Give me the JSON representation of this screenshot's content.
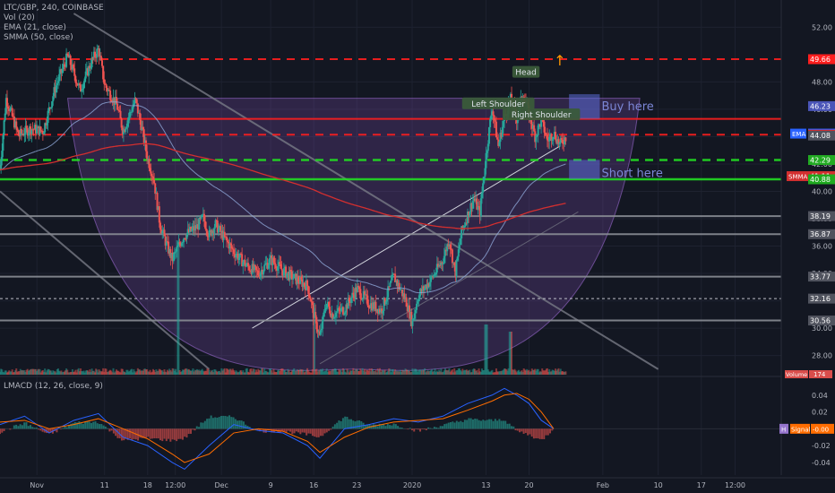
{
  "header": {
    "symbol_line": "LTC/GBP, 240, COINBASE",
    "indicators": [
      "Vol (20)",
      "EMA (21, close)",
      "SMMA (50, close)"
    ]
  },
  "macd_label": "LMACD (12, 26, close, 9)",
  "colors": {
    "background": "#131722",
    "up": "#26a69a",
    "down": "#ef5350",
    "ema": "#8fa8d8",
    "smma": "#d32f2f",
    "cup_fill": "#7b4aa8",
    "resistance": "#ff1e1e",
    "support": "#22dd22",
    "grey_line": "#8a8d95",
    "macd": "#2962ff",
    "signal": "#ff6d00"
  },
  "chart_data": [
    {
      "type": "candlestick",
      "title": "LTC/GBP, 240, COINBASE",
      "y_axis": {
        "ticks": [
          52.0,
          48.0,
          46.0,
          44.0,
          42.0,
          40.0,
          38.0,
          36.0,
          34.0,
          32.0,
          30.0,
          28.0
        ],
        "range": [
          26.6,
          53.2
        ]
      },
      "x_axis": {
        "ticks": [
          {
            "label": "Nov",
            "t": 6
          },
          {
            "label": "11",
            "t": 17
          },
          {
            "label": "18",
            "t": 24
          },
          {
            "label": "12:00",
            "t": 28.5
          },
          {
            "label": "Dec",
            "t": 36
          },
          {
            "label": "9",
            "t": 44
          },
          {
            "label": "16",
            "t": 51
          },
          {
            "label": "23",
            "t": 58
          },
          {
            "label": "2020",
            "t": 67
          },
          {
            "label": "13",
            "t": 79
          },
          {
            "label": "20",
            "t": 86
          },
          {
            "label": "Feb",
            "t": 98
          },
          {
            "label": "10",
            "t": 107
          },
          {
            "label": "17",
            "t": 114
          },
          {
            "label": "12:00",
            "t": 119.5
          }
        ],
        "range": [
          0,
          127
        ]
      },
      "price_path": [
        [
          0,
          41.6
        ],
        [
          1,
          46.8
        ],
        [
          3,
          44.1
        ],
        [
          5,
          44.6
        ],
        [
          7,
          44.4
        ],
        [
          9,
          47.6
        ],
        [
          11,
          49.9
        ],
        [
          13,
          47.4
        ],
        [
          15,
          49.6
        ],
        [
          16,
          50.4
        ],
        [
          17,
          47.8
        ],
        [
          19,
          46.3
        ],
        [
          20,
          44.4
        ],
        [
          22,
          46.7
        ],
        [
          23,
          44.7
        ],
        [
          24,
          42.4
        ],
        [
          25,
          40.9
        ],
        [
          26,
          37.6
        ],
        [
          27,
          36.2
        ],
        [
          28,
          35.0
        ],
        [
          29,
          36.0
        ],
        [
          30,
          36.8
        ],
        [
          32,
          37.4
        ],
        [
          33,
          38.1
        ],
        [
          34,
          36.8
        ],
        [
          35,
          37.6
        ],
        [
          36,
          36.9
        ],
        [
          38,
          35.6
        ],
        [
          40,
          34.6
        ],
        [
          42,
          34.0
        ],
        [
          44,
          35.0
        ],
        [
          46,
          34.2
        ],
        [
          48,
          33.6
        ],
        [
          50,
          33.1
        ],
        [
          51,
          31.0
        ],
        [
          52,
          29.3
        ],
        [
          53,
          31.9
        ],
        [
          54,
          31.0
        ],
        [
          56,
          31.4
        ],
        [
          58,
          32.9
        ],
        [
          60,
          31.8
        ],
        [
          62,
          31.3
        ],
        [
          64,
          33.8
        ],
        [
          66,
          32.0
        ],
        [
          67,
          30.4
        ],
        [
          68,
          32.4
        ],
        [
          70,
          33.5
        ],
        [
          72,
          35.0
        ],
        [
          73,
          36.5
        ],
        [
          74,
          34.0
        ],
        [
          75,
          37.0
        ],
        [
          77,
          39.5
        ],
        [
          78,
          38.4
        ],
        [
          79,
          42.6
        ],
        [
          80,
          46.2
        ],
        [
          81,
          43.3
        ],
        [
          82,
          45.4
        ],
        [
          83,
          46.7
        ],
        [
          84,
          45.3
        ],
        [
          85,
          47.2
        ],
        [
          86,
          45.6
        ],
        [
          87,
          44.0
        ],
        [
          88,
          45.2
        ],
        [
          89,
          43.7
        ],
        [
          90,
          44.3
        ],
        [
          91,
          43.4
        ],
        [
          92,
          44.0
        ]
      ],
      "volume_spikes": [
        [
          29,
          9.0
        ],
        [
          51,
          5.0
        ],
        [
          79,
          3.5
        ],
        [
          83,
          3.0
        ]
      ],
      "ema_21_last": 44.22,
      "smma_50_last": 41.11,
      "horizontal_levels": [
        {
          "price": 49.66,
          "style": "red-dashed",
          "label": "49.66"
        },
        {
          "price": 46.23,
          "style": "box",
          "label": "46.23"
        },
        {
          "price": 45.3,
          "style": "red-solid",
          "label": ""
        },
        {
          "price": 44.22,
          "style": "ema",
          "label": "44.22"
        },
        {
          "price": 44.14,
          "style": "red-dashed",
          "label": "44.14"
        },
        {
          "price": 44.08,
          "style": "grey",
          "label": "44.08"
        },
        {
          "price": 42.29,
          "style": "green-dashed",
          "label": "42.29"
        },
        {
          "price": 41.11,
          "style": "smma",
          "label": "41.11"
        },
        {
          "price": 40.88,
          "style": "green-solid",
          "label": "40.88"
        },
        {
          "price": 38.19,
          "style": "grey-solid",
          "label": "38.19"
        },
        {
          "price": 36.87,
          "style": "grey-solid",
          "label": "36.87"
        },
        {
          "price": 33.77,
          "style": "grey-solid",
          "label": "33.77"
        },
        {
          "price": 32.16,
          "style": "white-dashed",
          "label": "32.16"
        },
        {
          "price": 30.56,
          "style": "grey-solid",
          "label": "30.56"
        }
      ],
      "axis_tags": {
        "ema": "EMA",
        "smma": "SMMA",
        "volume": "Volume",
        "volume_value": "174"
      },
      "annotations": [
        {
          "text": "Head",
          "t": 85.5,
          "price": 48.7,
          "style": "green-label"
        },
        {
          "text": "Left Shoulder",
          "t": 81,
          "price": 46.4,
          "style": "green-label"
        },
        {
          "text": "Right Shoulder",
          "t": 88,
          "price": 45.6,
          "style": "green-label"
        },
        {
          "text": "Buy here",
          "t": 96.5,
          "price": 46.2,
          "style": "box-label"
        },
        {
          "text": "Short here",
          "t": 96.5,
          "price": 41.3,
          "style": "box-label"
        },
        {
          "text": "↑",
          "t": 91,
          "price": 49.6,
          "style": "arrow"
        }
      ],
      "pattern": "cup",
      "cup_range_price": [
        27.0,
        46.8
      ],
      "cup_range_t": [
        11,
        104
      ]
    },
    {
      "type": "line",
      "title": "LMACD (12, 26, close, 9)",
      "y_axis": {
        "ticks": [
          0.04,
          0.02,
          0.0,
          -0.02,
          -0.04
        ],
        "range": [
          -0.055,
          0.06
        ]
      },
      "series": [
        {
          "name": "MACD",
          "points": [
            [
              0,
              0.005
            ],
            [
              4,
              0.015
            ],
            [
              8,
              -0.005
            ],
            [
              12,
              0.01
            ],
            [
              16,
              0.018
            ],
            [
              20,
              -0.01
            ],
            [
              24,
              -0.02
            ],
            [
              28,
              -0.04
            ],
            [
              30,
              -0.048
            ],
            [
              34,
              -0.02
            ],
            [
              38,
              0.005
            ],
            [
              42,
              -0.002
            ],
            [
              46,
              -0.005
            ],
            [
              50,
              -0.02
            ],
            [
              52,
              -0.035
            ],
            [
              56,
              0.0
            ],
            [
              60,
              0.005
            ],
            [
              64,
              0.012
            ],
            [
              68,
              0.008
            ],
            [
              72,
              0.015
            ],
            [
              76,
              0.03
            ],
            [
              80,
              0.04
            ],
            [
              82,
              0.048
            ],
            [
              84,
              0.04
            ],
            [
              86,
              0.03
            ],
            [
              88,
              0.01
            ],
            [
              90,
              0.0
            ]
          ]
        },
        {
          "name": "Signal",
          "points": [
            [
              0,
              0.008
            ],
            [
              4,
              0.01
            ],
            [
              8,
              0.0
            ],
            [
              12,
              0.005
            ],
            [
              16,
              0.012
            ],
            [
              20,
              0.0
            ],
            [
              24,
              -0.012
            ],
            [
              28,
              -0.03
            ],
            [
              30,
              -0.04
            ],
            [
              34,
              -0.03
            ],
            [
              38,
              -0.005
            ],
            [
              42,
              0.0
            ],
            [
              46,
              -0.003
            ],
            [
              50,
              -0.015
            ],
            [
              52,
              -0.028
            ],
            [
              56,
              -0.01
            ],
            [
              60,
              0.002
            ],
            [
              64,
              0.008
            ],
            [
              68,
              0.01
            ],
            [
              72,
              0.012
            ],
            [
              76,
              0.022
            ],
            [
              80,
              0.033
            ],
            [
              82,
              0.04
            ],
            [
              84,
              0.042
            ],
            [
              86,
              0.035
            ],
            [
              88,
              0.02
            ],
            [
              90,
              0.0
            ]
          ]
        }
      ],
      "tags": {
        "signal": "Signal",
        "signal_value": "-0.00",
        "h": "H"
      }
    }
  ]
}
